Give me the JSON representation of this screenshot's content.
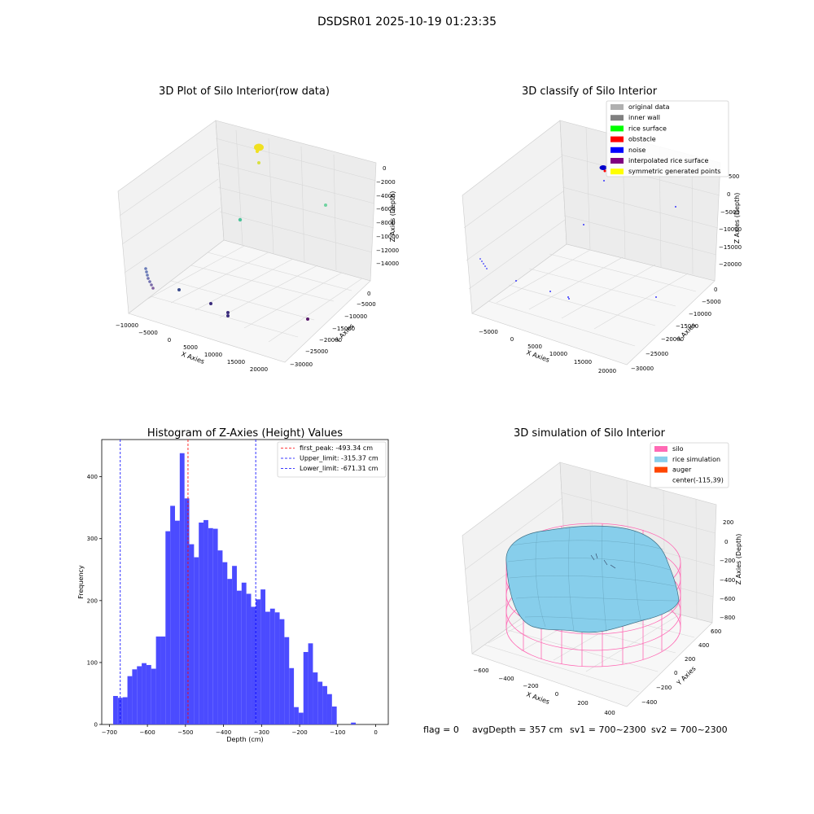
{
  "figure": {
    "title": "DSDSR01 2025-10-19 01:23:35"
  },
  "panels": {
    "raw": {
      "title": "3D Plot of Silo Interior(row data)",
      "xlabel": "X Axies",
      "ylabel": "Y Axies",
      "zlabel": "Z Axies (Depth)",
      "xticks": [
        "−10000",
        "−5000",
        "0",
        "5000",
        "10000",
        "15000",
        "20000"
      ],
      "yticks": [
        "0",
        "−5000",
        "−10000",
        "−15000",
        "−20000",
        "−25000",
        "−30000"
      ],
      "zticks": [
        "0",
        "−2000",
        "−4000",
        "−6000",
        "−8000",
        "−10000",
        "−12000",
        "−14000"
      ]
    },
    "classify": {
      "title": "3D classify of Silo Interior",
      "xlabel": "X Axies",
      "ylabel": "Y Axies",
      "zlabel": "Z Axies (Depth)",
      "xticks": [
        "−5000",
        "0",
        "5000",
        "10000",
        "15000",
        "20000"
      ],
      "yticks": [
        "0",
        "−5000",
        "−10000",
        "−15000",
        "−20000",
        "−25000",
        "−30000"
      ],
      "zticks": [
        "500",
        "0",
        "−5000",
        "−10000",
        "−15000",
        "−20000"
      ],
      "legend": [
        {
          "label": "original data",
          "color": "#b0b0b0"
        },
        {
          "label": "inner wall",
          "color": "#808080"
        },
        {
          "label": "rice surface",
          "color": "#00ff00"
        },
        {
          "label": "obstacle",
          "color": "#ff0000"
        },
        {
          "label": "noise",
          "color": "#0000ff"
        },
        {
          "label": "interpolated rice surface",
          "color": "#800080"
        },
        {
          "label": "symmetric generated points",
          "color": "#ffff00"
        }
      ]
    },
    "simulation": {
      "title": "3D simulation of Silo Interior",
      "xlabel": "X Axies",
      "ylabel": "Y Axies",
      "zlabel": "Z Axies (Depth)",
      "xticks": [
        "−600",
        "−400",
        "−200",
        "0",
        "200",
        "400"
      ],
      "yticks": [
        "600",
        "400",
        "200",
        "0",
        "−200",
        "−400"
      ],
      "zticks": [
        "200",
        "0",
        "−200",
        "−400",
        "−600",
        "−800"
      ],
      "legend": [
        {
          "label": "silo",
          "color": "#ff69b4"
        },
        {
          "label": "rice simulation",
          "color": "#87ceeb"
        },
        {
          "label": "auger",
          "color": "#ff4500"
        },
        {
          "label": "center(-115,39)",
          "color": ""
        }
      ]
    }
  },
  "status": {
    "flag": "flag = 0",
    "avg_depth": "avgDepth = 357 cm",
    "sv1": "sv1 = 700~2300",
    "sv2": "sv2 = 700~2300"
  },
  "colors": {
    "hist_bar": "#4b4bff",
    "first_peak_line": "#ff0000",
    "limit_line": "#0000ff"
  },
  "chart_data": [
    {
      "type": "scatter",
      "title": "3D Plot of Silo Interior(row data)",
      "xlabel": "X Axies",
      "ylabel": "Y Axies",
      "zlabel": "Z Axies (Depth)",
      "xlim": [
        -10000,
        20000
      ],
      "ylim": [
        -30000,
        0
      ],
      "zlim": [
        -14000,
        0
      ]
    },
    {
      "type": "scatter",
      "title": "3D classify of Silo Interior",
      "xlabel": "X Axies",
      "ylabel": "Y Axies",
      "zlabel": "Z Axies (Depth)",
      "xlim": [
        -5000,
        20000
      ],
      "ylim": [
        -30000,
        0
      ],
      "zlim": [
        -20000,
        500
      ],
      "legend": "top-right"
    },
    {
      "type": "bar",
      "title": "Histogram of Z-Axies (Height) Values",
      "xlabel": "Depth (cm)",
      "ylabel": "Frequency",
      "xlim": [
        -700,
        0
      ],
      "ylim": [
        0,
        460
      ],
      "xticks": [
        -700,
        -600,
        -500,
        -400,
        -300,
        -200,
        -100,
        0
      ],
      "yticks": [
        0,
        100,
        200,
        300,
        400
      ],
      "bin_start": -690,
      "bin_width": 12.5,
      "values": [
        46,
        43,
        44,
        78,
        89,
        94,
        99,
        96,
        90,
        142,
        142,
        312,
        353,
        329,
        438,
        365,
        291,
        270,
        326,
        330,
        317,
        316,
        281,
        262,
        235,
        256,
        216,
        229,
        211,
        190,
        202,
        218,
        182,
        187,
        181,
        170,
        141,
        91,
        28,
        19,
        117,
        131,
        84,
        69,
        62,
        49,
        29,
        0,
        0,
        0,
        3
      ],
      "lines": [
        {
          "label": "first_peak: -493.34 cm",
          "x": -493.34,
          "color": "#ff0000"
        },
        {
          "label": "Upper_limit: -315.37 cm",
          "x": -315.37,
          "color": "#0000ff"
        },
        {
          "label": "Lower_limit: -671.31 cm",
          "x": -671.31,
          "color": "#0000ff"
        }
      ],
      "legend": "top-right"
    },
    {
      "type": "surface",
      "title": "3D simulation of Silo Interior",
      "xlabel": "X Axies",
      "ylabel": "Y Axies",
      "zlabel": "Z Axies (Depth)",
      "xlim": [
        -700,
        450
      ],
      "ylim": [
        -450,
        650
      ],
      "zlim": [
        -800,
        300
      ],
      "legend": "top-right"
    }
  ]
}
